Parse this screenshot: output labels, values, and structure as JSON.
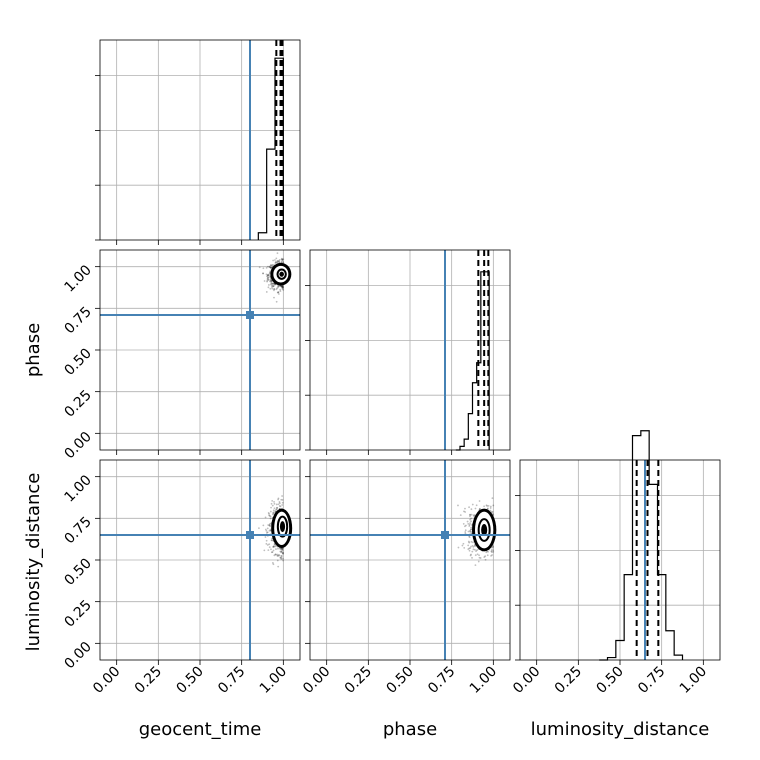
{
  "chart_data": {
    "type": "corner",
    "parameters": [
      "geocent_time",
      "phase",
      "luminosity_distance"
    ],
    "tick_labels": [
      "0.00",
      "0.25",
      "0.50",
      "0.75",
      "1.00"
    ],
    "ticks": [
      0.0,
      0.25,
      0.5,
      0.75,
      1.0
    ],
    "xlim": [
      -0.1,
      1.1
    ],
    "grid": true,
    "truths": {
      "geocent_time": 0.8,
      "phase": 0.71,
      "luminosity_distance": 0.65
    },
    "histograms": [
      {
        "param": "geocent_time",
        "bin_width": 0.05,
        "bin_edges_start": 0.85,
        "counts": [
          0.04,
          0.5,
          1.0
        ],
        "ymax": 1.1,
        "quantiles": [
          0.958,
          0.983,
          0.995
        ]
      },
      {
        "param": "phase",
        "bin_width": 0.025,
        "bin_edges_start": 0.775,
        "counts": [
          0.0,
          0.02,
          0.06,
          0.2,
          0.37,
          0.48,
          0.98,
          0.98
        ],
        "ymax": 1.1,
        "quantiles": [
          0.91,
          0.945,
          0.97
        ]
      },
      {
        "param": "luminosity_distance",
        "bin_width": 0.05,
        "bin_edges_start": 0.375,
        "counts": [
          0.0,
          0.01,
          0.08,
          0.35,
          0.92,
          0.94,
          0.72,
          0.35,
          0.12,
          0.02
        ],
        "ymax": 0.82,
        "quantiles": [
          0.6,
          0.665,
          0.73
        ]
      }
    ],
    "scatter_panels": [
      {
        "x": "geocent_time",
        "y": "phase",
        "center": [
          0.98,
          0.95
        ],
        "spread": [
          0.035,
          0.04
        ],
        "contour_outer": [
          0.985,
          0.955,
          0.045,
          0.05
        ],
        "contour_inner": [
          0.99,
          0.955,
          0.025,
          0.028
        ]
      },
      {
        "x": "geocent_time",
        "y": "luminosity_distance",
        "center": [
          0.985,
          0.68
        ],
        "spread": [
          0.035,
          0.07
        ],
        "contour_outer": [
          0.99,
          0.69,
          0.045,
          0.1
        ],
        "contour_inner": [
          0.995,
          0.7,
          0.028,
          0.06
        ]
      },
      {
        "x": "phase",
        "y": "luminosity_distance",
        "center": [
          0.94,
          0.68
        ],
        "spread": [
          0.045,
          0.07
        ],
        "contour_outer": [
          0.945,
          0.68,
          0.055,
          0.11
        ],
        "contour_inner": [
          0.945,
          0.68,
          0.033,
          0.065
        ]
      }
    ]
  }
}
